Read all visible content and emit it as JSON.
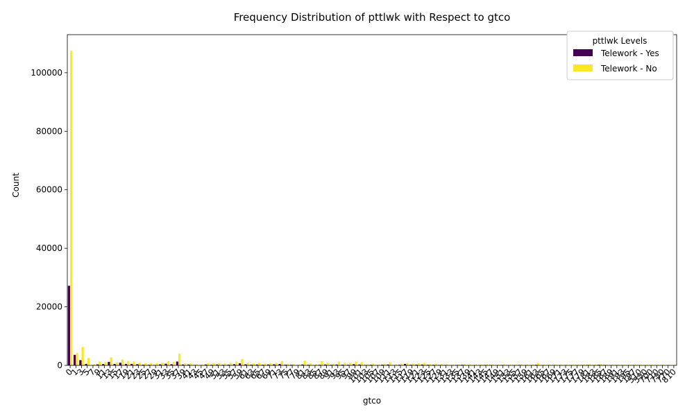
{
  "chart_data": {
    "type": "bar",
    "title": "Frequency Distribution of pttlwk with Respect to gtco",
    "xlabel": "gtco",
    "ylabel": "Count",
    "ylim": [
      0,
      113000
    ],
    "yticks": [
      0,
      20000,
      40000,
      60000,
      80000,
      100000
    ],
    "legend": {
      "title": "pttlwk Levels",
      "placement": "top-right"
    },
    "categories": [
      "0",
      "1",
      "3",
      "5",
      "7",
      "9",
      "11",
      "13",
      "15",
      "17",
      "19",
      "21",
      "23",
      "25",
      "27",
      "29",
      "31",
      "33",
      "35",
      "37",
      "39",
      "41",
      "43",
      "45",
      "47",
      "49",
      "51",
      "53",
      "55",
      "57",
      "59",
      "61",
      "63",
      "65",
      "67",
      "69",
      "71",
      "73",
      "75",
      "77",
      "79",
      "81",
      "83",
      "85",
      "87",
      "89",
      "91",
      "93",
      "95",
      "97",
      "99",
      "101",
      "103",
      "105",
      "107",
      "109",
      "111",
      "113",
      "115",
      "117",
      "119",
      "121",
      "123",
      "125",
      "127",
      "129",
      "131",
      "133",
      "135",
      "137",
      "139",
      "141",
      "143",
      "145",
      "147",
      "149",
      "151",
      "153",
      "155",
      "157",
      "159",
      "161",
      "163",
      "165",
      "167",
      "169",
      "171",
      "173",
      "175",
      "177",
      "179",
      "181",
      "183",
      "185",
      "187",
      "189",
      "191",
      "193",
      "195",
      "197",
      "510",
      "550",
      "700",
      "710",
      "750",
      "770",
      "810"
    ],
    "series": [
      {
        "name": "Telework - Yes",
        "color": "#440154",
        "values": [
          27200,
          3600,
          1800,
          500,
          100,
          350,
          450,
          1200,
          500,
          900,
          500,
          500,
          400,
          250,
          200,
          150,
          350,
          550,
          400,
          1300,
          300,
          300,
          150,
          100,
          300,
          200,
          300,
          200,
          250,
          400,
          700,
          350,
          250,
          300,
          200,
          300,
          350,
          500,
          250,
          200,
          100,
          300,
          200,
          100,
          200,
          300,
          200,
          300,
          250,
          200,
          400,
          300,
          150,
          200,
          100,
          250,
          300,
          100,
          200,
          500,
          200,
          250,
          300,
          200,
          200,
          150,
          150,
          100,
          150,
          200,
          100,
          100,
          100,
          150,
          150,
          100,
          150,
          100,
          100,
          150,
          100,
          100,
          200,
          100,
          100,
          100,
          100,
          100,
          100,
          100,
          100,
          150,
          100,
          200,
          150,
          100,
          100,
          100,
          100,
          100,
          100,
          50,
          50,
          50,
          50,
          50,
          50
        ]
      },
      {
        "name": "Telework - No",
        "color": "#fde725",
        "values": [
          107500,
          4200,
          6300,
          2500,
          400,
          1300,
          1100,
          2700,
          1100,
          2000,
          1500,
          1300,
          900,
          800,
          800,
          700,
          1000,
          1400,
          1200,
          4000,
          700,
          700,
          400,
          300,
          700,
          800,
          800,
          700,
          900,
          1300,
          2200,
          900,
          700,
          900,
          600,
          700,
          900,
          1500,
          600,
          500,
          300,
          1600,
          700,
          400,
          1500,
          900,
          600,
          1300,
          900,
          900,
          1300,
          1100,
          400,
          600,
          300,
          600,
          1100,
          400,
          600,
          800,
          600,
          700,
          800,
          500,
          600,
          500,
          400,
          300,
          400,
          500,
          300,
          300,
          300,
          400,
          400,
          300,
          400,
          300,
          300,
          400,
          300,
          300,
          800,
          300,
          300,
          300,
          300,
          300,
          300,
          300,
          300,
          400,
          300,
          500,
          300,
          300,
          300,
          200,
          200,
          200,
          200,
          200,
          200,
          200,
          200,
          200,
          200
        ]
      }
    ]
  }
}
